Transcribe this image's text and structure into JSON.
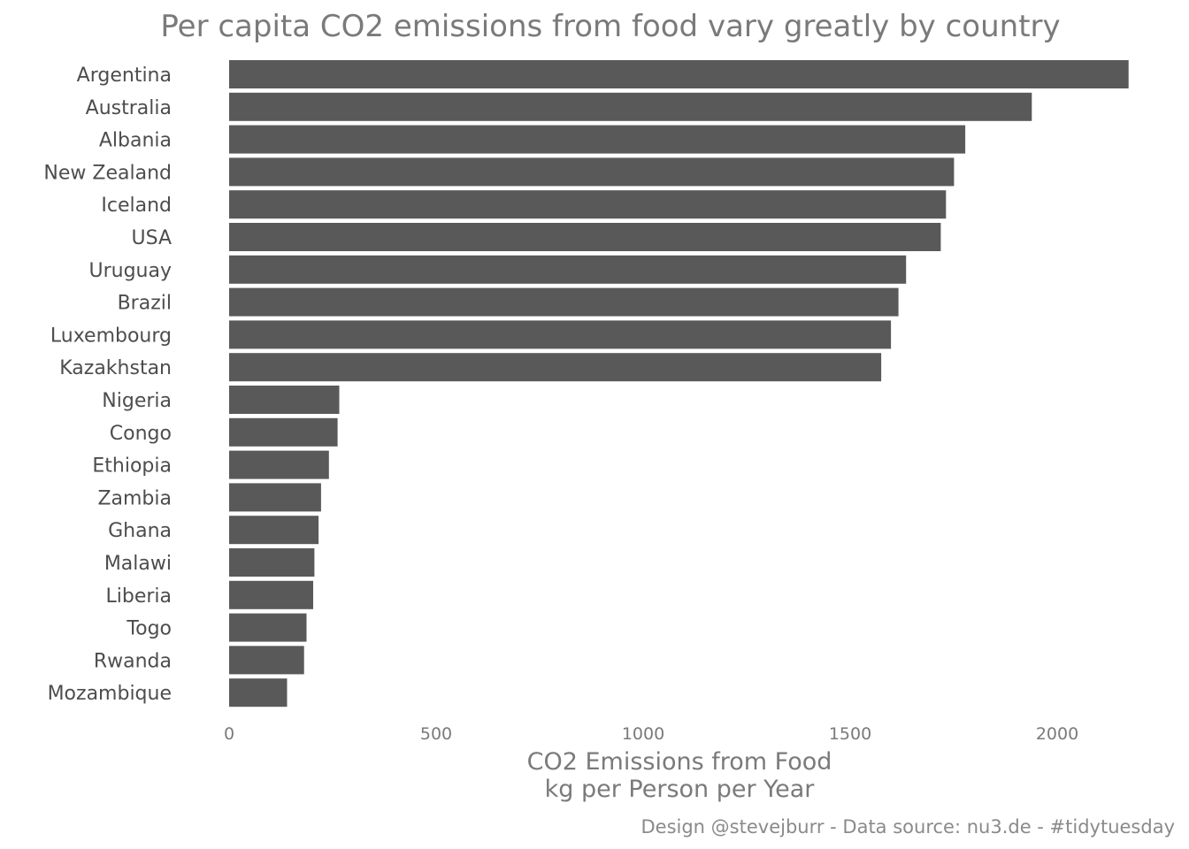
{
  "chart_data": {
    "type": "bar",
    "orientation": "horizontal",
    "title": "Per capita CO2 emissions from food vary greatly by country",
    "xlabel_line1": "CO2 Emissions from Food",
    "xlabel_line2": "kg per Person per Year",
    "ylabel": "",
    "caption": "Design @stevejburr - Data source: nu3.de - #tidytuesday",
    "xlim": [
      0,
      2175
    ],
    "xticks": [
      0,
      500,
      1000,
      1500,
      2000
    ],
    "grid": false,
    "bar_color": "#595959",
    "categories": [
      "Argentina",
      "Australia",
      "Albania",
      "New Zealand",
      "Iceland",
      "USA",
      "Uruguay",
      "Brazil",
      "Luxembourg",
      "Kazakhstan",
      "Nigeria",
      "Congo",
      "Ethiopia",
      "Zambia",
      "Ghana",
      "Malawi",
      "Liberia",
      "Togo",
      "Rwanda",
      "Mozambique"
    ],
    "values": [
      2172.4,
      1938.7,
      1777.9,
      1750.9,
      1731.4,
      1718.9,
      1635.0,
      1616.7,
      1598.4,
      1575.1,
      266.0,
      262.0,
      241.0,
      222.0,
      216.0,
      206.0,
      203.0,
      187.0,
      181.0,
      140.0
    ]
  }
}
